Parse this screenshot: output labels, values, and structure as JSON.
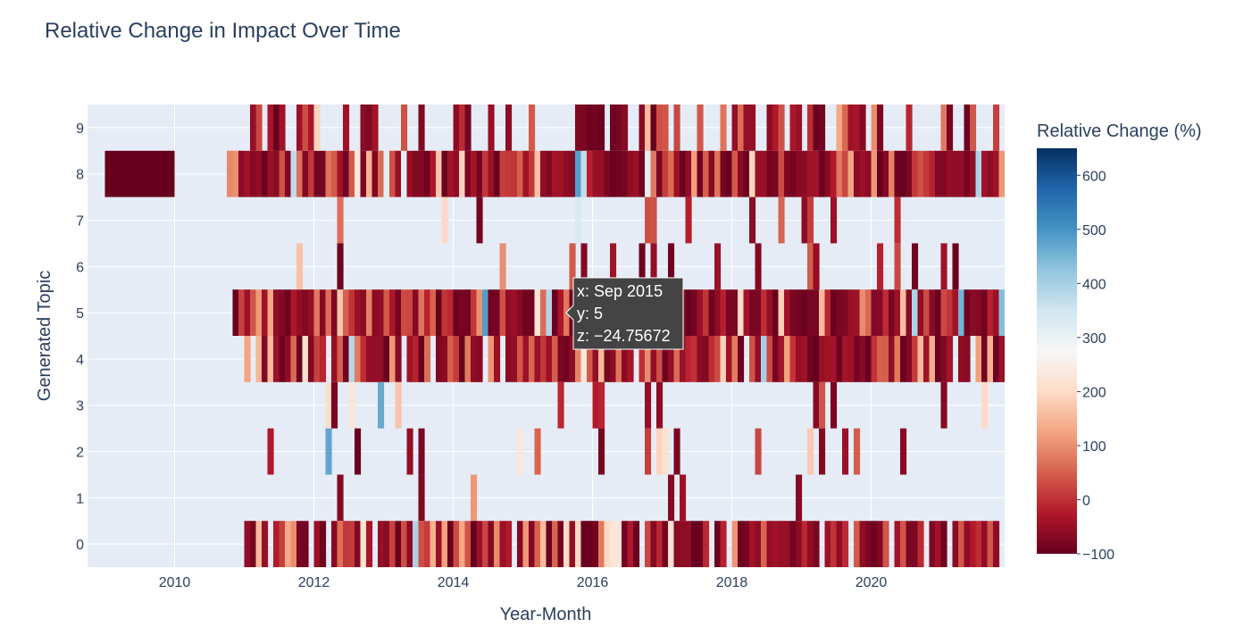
{
  "chart_data": {
    "type": "heatmap",
    "title": "Relative Change in Impact Over Time",
    "xlabel": "Year-Month",
    "ylabel": "Generated Topic",
    "x_ticks": [
      "2010",
      "2012",
      "2014",
      "2016",
      "2018",
      "2020"
    ],
    "y_ticks": [
      "0",
      "1",
      "2",
      "3",
      "4",
      "5",
      "6",
      "7",
      "8",
      "9"
    ],
    "xlim": [
      "2008-10",
      "2021-12"
    ],
    "ylim": [
      -0.5,
      9.5
    ],
    "grid": true,
    "colorscale": "RdBu",
    "colorbar": {
      "title": "Relative Change (%)",
      "range": [
        -100,
        650
      ],
      "ticks": [
        "600",
        "500",
        "400",
        "300",
        "200",
        "100",
        "0",
        "−100"
      ],
      "stops": [
        "#67001f",
        "#b2182b",
        "#d6604d",
        "#f4a582",
        "#fddbc7",
        "#f7f7f7",
        "#d1e5f0",
        "#92c5de",
        "#4393c3",
        "#2166ac",
        "#053061"
      ]
    },
    "hover": {
      "x_label": "x: Sep 2015",
      "y_label": "y: 5",
      "z_label": "z: −24.75672"
    },
    "cells": [
      {
        "y": 8,
        "x0": "2009-01",
        "x1": "2009-12",
        "z": -100
      },
      {
        "y": 8,
        "x0": "2010-10",
        "x1": "2021-12",
        "z_profile": "mixed",
        "density": 1.0
      },
      {
        "y": 9,
        "x0": "2010-12",
        "x1": "2021-12",
        "z_profile": "mixed",
        "density": 0.5
      },
      {
        "y": 7,
        "x0": "2012-01",
        "x1": "2021-03",
        "z_profile": "sparse",
        "density": 0.1
      },
      {
        "y": 6,
        "x0": "2011-02",
        "x1": "2021-03",
        "z_profile": "sparse",
        "density": 0.12
      },
      {
        "y": 5,
        "x0": "2010-11",
        "x1": "2021-12",
        "z_profile": "mixed",
        "density": 1.0
      },
      {
        "y": 4,
        "x0": "2011-01",
        "x1": "2021-12",
        "z_profile": "mixed",
        "density": 0.95
      },
      {
        "y": 3,
        "x0": "2011-07",
        "x1": "2021-09",
        "z_profile": "sparse",
        "density": 0.12
      },
      {
        "y": 2,
        "x0": "2011-02",
        "x1": "2021-01",
        "z_profile": "sparse",
        "density": 0.16
      },
      {
        "y": 1,
        "x0": "2011-03",
        "x1": "2020-03",
        "z_profile": "sparse",
        "density": 0.06
      },
      {
        "y": 0,
        "x0": "2011-01",
        "x1": "2021-10",
        "z_profile": "mixed",
        "density": 0.85
      }
    ]
  }
}
